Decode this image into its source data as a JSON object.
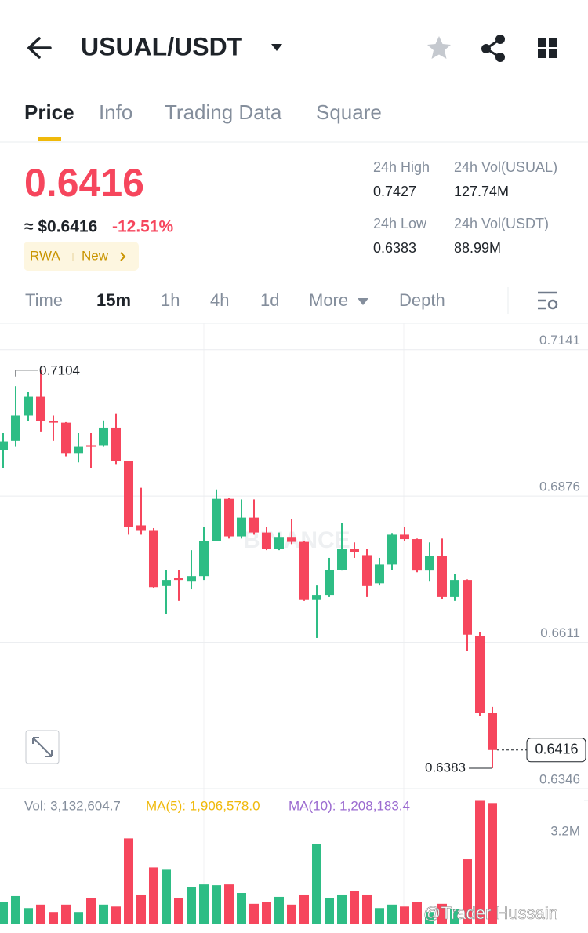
{
  "header": {
    "title": "USUAL/USDT"
  },
  "tabs": [
    "Price",
    "Info",
    "Trading Data",
    "Square"
  ],
  "ticker": {
    "price": "0.6416",
    "usd_price": "≈ $0.6416",
    "change": "-12.51%",
    "tags": [
      "RWA",
      "New"
    ]
  },
  "stats": [
    {
      "label": "24h High",
      "value": "0.7427"
    },
    {
      "label": "24h Vol(USUAL)",
      "value": "127.74M"
    },
    {
      "label": "24h Low",
      "value": "0.6383"
    },
    {
      "label": "24h Vol(USDT)",
      "value": "88.99M"
    }
  ],
  "intervals": [
    "Time",
    "15m",
    "1h",
    "4h",
    "1d",
    "More",
    "Depth"
  ],
  "watermarks": [
    "BINANCE",
    "@Trader Hussain"
  ],
  "chart_data": [
    {
      "type": "candlestick",
      "up_color": "#2ebd85",
      "down_color": "#f6465d",
      "grid": true,
      "ylim": [
        0.6346,
        0.7189
      ],
      "yticks": [
        0.7141,
        0.6876,
        0.6611,
        0.6346
      ],
      "candles": [
        {
          "open": 0.6959,
          "high": 0.699,
          "low": 0.6927,
          "close": 0.6975
        },
        {
          "open": 0.6976,
          "high": 0.7075,
          "low": 0.6965,
          "close": 0.7022
        },
        {
          "open": 0.7022,
          "high": 0.7064,
          "low": 0.7012,
          "close": 0.7056
        },
        {
          "open": 0.7056,
          "high": 0.7104,
          "low": 0.6993,
          "close": 0.7012
        },
        {
          "open": 0.7012,
          "high": 0.7022,
          "low": 0.6976,
          "close": 0.7009
        },
        {
          "open": 0.7009,
          "high": 0.701,
          "low": 0.6948,
          "close": 0.6954
        },
        {
          "open": 0.6954,
          "high": 0.699,
          "low": 0.6937,
          "close": 0.6965
        },
        {
          "open": 0.6968,
          "high": 0.699,
          "low": 0.6927,
          "close": 0.6965
        },
        {
          "open": 0.6968,
          "high": 0.7013,
          "low": 0.6965,
          "close": 0.7
        },
        {
          "open": 0.7,
          "high": 0.7026,
          "low": 0.6934,
          "close": 0.6939
        },
        {
          "open": 0.6939,
          "high": 0.694,
          "low": 0.6806,
          "close": 0.682
        },
        {
          "open": 0.6823,
          "high": 0.6891,
          "low": 0.6806,
          "close": 0.6813
        },
        {
          "open": 0.6813,
          "high": 0.6818,
          "low": 0.671,
          "close": 0.6711
        },
        {
          "open": 0.6713,
          "high": 0.6742,
          "low": 0.6662,
          "close": 0.6724
        },
        {
          "open": 0.6727,
          "high": 0.6742,
          "low": 0.6686,
          "close": 0.6724
        },
        {
          "open": 0.6721,
          "high": 0.6778,
          "low": 0.6707,
          "close": 0.6731
        },
        {
          "open": 0.6731,
          "high": 0.682,
          "low": 0.6724,
          "close": 0.6795
        },
        {
          "open": 0.6795,
          "high": 0.6888,
          "low": 0.6794,
          "close": 0.6871
        },
        {
          "open": 0.6871,
          "high": 0.6872,
          "low": 0.6799,
          "close": 0.6803
        },
        {
          "open": 0.6803,
          "high": 0.687,
          "low": 0.6799,
          "close": 0.6837
        },
        {
          "open": 0.6837,
          "high": 0.687,
          "low": 0.6806,
          "close": 0.681
        },
        {
          "open": 0.681,
          "high": 0.682,
          "low": 0.6778,
          "close": 0.6781
        },
        {
          "open": 0.6781,
          "high": 0.681,
          "low": 0.6778,
          "close": 0.6802
        },
        {
          "open": 0.6802,
          "high": 0.6835,
          "low": 0.6789,
          "close": 0.6793
        },
        {
          "open": 0.6793,
          "high": 0.6794,
          "low": 0.6686,
          "close": 0.6689
        },
        {
          "open": 0.6689,
          "high": 0.6714,
          "low": 0.6619,
          "close": 0.6697
        },
        {
          "open": 0.6697,
          "high": 0.6764,
          "low": 0.6693,
          "close": 0.6742
        },
        {
          "open": 0.6742,
          "high": 0.6827,
          "low": 0.6741,
          "close": 0.6781
        },
        {
          "open": 0.6781,
          "high": 0.6792,
          "low": 0.6764,
          "close": 0.6774
        },
        {
          "open": 0.6769,
          "high": 0.6781,
          "low": 0.6693,
          "close": 0.6713
        },
        {
          "open": 0.6718,
          "high": 0.6764,
          "low": 0.6714,
          "close": 0.6752
        },
        {
          "open": 0.6752,
          "high": 0.6809,
          "low": 0.6742,
          "close": 0.6806
        },
        {
          "open": 0.6806,
          "high": 0.682,
          "low": 0.6795,
          "close": 0.6798
        },
        {
          "open": 0.6798,
          "high": 0.6799,
          "low": 0.6738,
          "close": 0.6741
        },
        {
          "open": 0.6741,
          "high": 0.6792,
          "low": 0.6721,
          "close": 0.6767
        },
        {
          "open": 0.6767,
          "high": 0.6799,
          "low": 0.669,
          "close": 0.6693
        },
        {
          "open": 0.6693,
          "high": 0.6735,
          "low": 0.6686,
          "close": 0.6724
        },
        {
          "open": 0.6724,
          "high": 0.6725,
          "low": 0.6596,
          "close": 0.6625
        },
        {
          "open": 0.6623,
          "high": 0.6629,
          "low": 0.6477,
          "close": 0.6483
        },
        {
          "open": 0.6483,
          "high": 0.6494,
          "low": 0.6383,
          "close": 0.6416
        }
      ]
    },
    {
      "type": "bar",
      "legend": [
        "Vol: 3,132,604.7",
        "MA(5): 1,906,578.0",
        "MA(10): 1,208,183.4"
      ],
      "ylim": [
        0,
        3200000
      ],
      "yticks": [
        {
          "value": 3200000,
          "label": "3.2M"
        }
      ],
      "values": [
        570000,
        730000,
        420000,
        510000,
        320000,
        510000,
        320000,
        670000,
        510000,
        460000,
        2220000,
        770000,
        1470000,
        1410000,
        670000,
        970000,
        1030000,
        1010000,
        1030000,
        810000,
        530000,
        570000,
        710000,
        510000,
        770000,
        2080000,
        670000,
        770000,
        870000,
        770000,
        420000,
        510000,
        460000,
        570000,
        320000,
        530000,
        400000,
        1680000,
        3190000,
        3132604.7
      ]
    }
  ]
}
